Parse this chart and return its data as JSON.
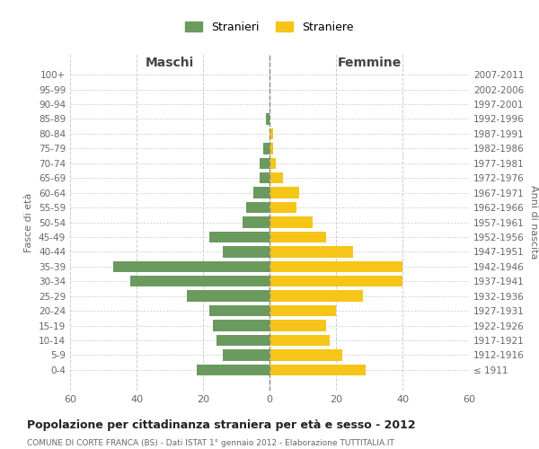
{
  "age_groups": [
    "100+",
    "95-99",
    "90-94",
    "85-89",
    "80-84",
    "75-79",
    "70-74",
    "65-69",
    "60-64",
    "55-59",
    "50-54",
    "45-49",
    "40-44",
    "35-39",
    "30-34",
    "25-29",
    "20-24",
    "15-19",
    "10-14",
    "5-9",
    "0-4"
  ],
  "birth_years": [
    "≤ 1911",
    "1912-1916",
    "1917-1921",
    "1922-1926",
    "1927-1931",
    "1932-1936",
    "1937-1941",
    "1942-1946",
    "1947-1951",
    "1952-1956",
    "1957-1961",
    "1962-1966",
    "1967-1971",
    "1972-1976",
    "1977-1981",
    "1982-1986",
    "1987-1991",
    "1992-1996",
    "1997-2001",
    "2002-2006",
    "2007-2011"
  ],
  "maschi": [
    0,
    0,
    0,
    1,
    0,
    2,
    3,
    3,
    5,
    7,
    8,
    18,
    14,
    47,
    42,
    25,
    18,
    17,
    16,
    14,
    22
  ],
  "femmine": [
    0,
    0,
    0,
    0,
    1,
    1,
    2,
    4,
    9,
    8,
    13,
    17,
    25,
    40,
    40,
    28,
    20,
    17,
    18,
    22,
    29
  ],
  "color_maschi": "#6b9a5e",
  "color_femmine": "#f5c518",
  "title_main": "Popolazione per cittadinanza straniera per età e sesso - 2012",
  "title_sub": "COMUNE DI CORTE FRANCA (BS) - Dati ISTAT 1° gennaio 2012 - Elaborazione TUTTITALIA.IT",
  "xlabel_left": "Maschi",
  "xlabel_right": "Femmine",
  "ylabel_left": "Fasce di età",
  "ylabel_right": "Anni di nascita",
  "legend_maschi": "Stranieri",
  "legend_femmine": "Straniere",
  "xlim": 60,
  "background_color": "#ffffff",
  "grid_color": "#cccccc"
}
